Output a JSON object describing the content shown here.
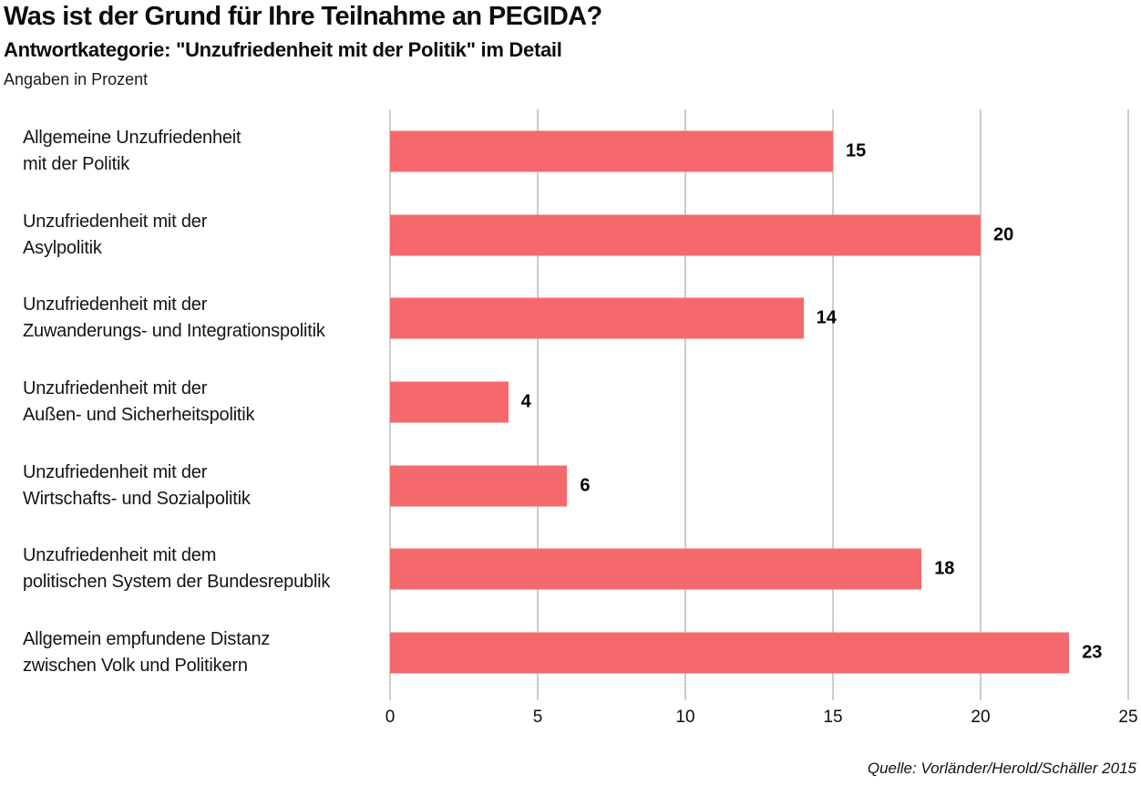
{
  "header": {
    "title": "Was ist der Grund für Ihre Teilnahme an PEGIDA?",
    "subtitle": "Antwortkategorie: \"Unzufriedenheit mit der Politik\" im Detail",
    "note": "Angaben in Prozent"
  },
  "source": "Quelle: Vorländer/Herold/Schäller 2015",
  "colors": {
    "bar": "#f5696d",
    "gridline": "#cccccc",
    "text": "#0d0d0d"
  },
  "chart_data": {
    "type": "bar",
    "orientation": "horizontal",
    "title": "Was ist der Grund für Ihre Teilnahme an PEGIDA?",
    "subtitle": "Antwortkategorie: \"Unzufriedenheit mit der Politik\" im Detail",
    "units": "Prozent",
    "xlabel": "",
    "ylabel": "",
    "xlim": [
      0,
      25
    ],
    "xticks": [
      0,
      5,
      10,
      15,
      20,
      25
    ],
    "grid": true,
    "legend": false,
    "categories": [
      "Allgemeine Unzufriedenheit mit der Politik",
      "Unzufriedenheit mit der Asylpolitik",
      "Unzufriedenheit mit der Zuwanderungs- und Integrationspolitik",
      "Unzufriedenheit mit der Außen- und Sicherheitspolitik",
      "Unzufriedenheit mit der Wirtschafts- und Sozialpolitik",
      "Unzufriedenheit mit dem politischen System der Bundesrepublik",
      "Allgemein empfundene Distanz zwischen Volk und Politikern"
    ],
    "category_lines": [
      [
        "Allgemeine Unzufriedenheit",
        "mit der Politik"
      ],
      [
        "Unzufriedenheit mit der",
        "Asylpolitik"
      ],
      [
        "Unzufriedenheit mit der",
        "Zuwanderungs- und Integrationspolitik"
      ],
      [
        "Unzufriedenheit mit der",
        "Außen- und Sicherheitspolitik"
      ],
      [
        "Unzufriedenheit mit der",
        "Wirtschafts- und Sozialpolitik"
      ],
      [
        "Unzufriedenheit mit dem",
        "politischen System der Bundesrepublik"
      ],
      [
        "Allgemein empfundene Distanz",
        "zwischen Volk und Politikern"
      ]
    ],
    "values": [
      15,
      20,
      14,
      4,
      6,
      18,
      23
    ]
  }
}
